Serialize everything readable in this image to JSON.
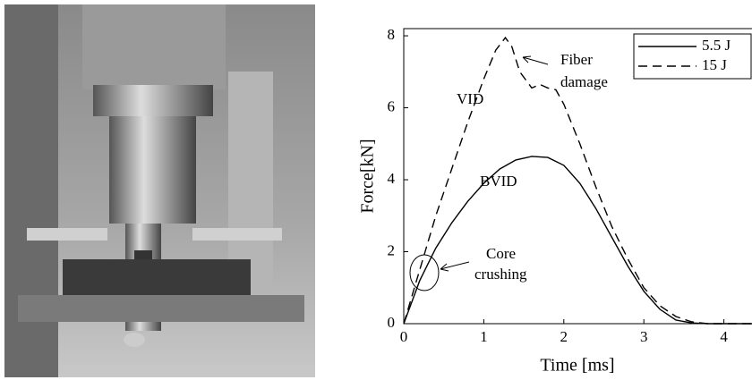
{
  "chart_data": {
    "type": "line",
    "x_label": "Time [ms]",
    "y_label": "Force[kN]",
    "xlim": [
      0,
      4.35
    ],
    "ylim": [
      0,
      8.2
    ],
    "xticks": [
      0,
      1,
      2,
      3,
      4
    ],
    "yticks": [
      0,
      2,
      4,
      6,
      8
    ],
    "legend": "top-right",
    "annotations": [
      "Fiber",
      "damage",
      "VID",
      "BVID",
      "Core",
      "crushing"
    ],
    "series": [
      {
        "name": "5.5 J",
        "color": "#000000",
        "dash": false,
        "x": [
          0,
          0.2,
          0.4,
          0.6,
          0.8,
          1.0,
          1.2,
          1.4,
          1.6,
          1.8,
          2.0,
          2.2,
          2.4,
          2.6,
          2.8,
          3.0,
          3.2,
          3.4,
          3.6,
          3.8,
          4.0,
          4.35
        ],
        "values": [
          0,
          1.2,
          2.1,
          2.8,
          3.4,
          3.9,
          4.3,
          4.55,
          4.65,
          4.62,
          4.4,
          3.9,
          3.2,
          2.4,
          1.6,
          0.9,
          0.4,
          0.1,
          0.02,
          0,
          0,
          0
        ]
      },
      {
        "name": "15 J",
        "color": "#000000",
        "dash": true,
        "x": [
          0,
          0.2,
          0.4,
          0.6,
          0.8,
          1.0,
          1.15,
          1.27,
          1.35,
          1.45,
          1.6,
          1.7,
          1.8,
          1.9,
          2.0,
          2.2,
          2.4,
          2.6,
          2.8,
          3.0,
          3.2,
          3.4,
          3.6,
          3.8,
          4.35
        ],
        "values": [
          0,
          1.5,
          3.0,
          4.3,
          5.6,
          6.8,
          7.6,
          7.95,
          7.7,
          7.0,
          6.55,
          6.65,
          6.55,
          6.5,
          6.1,
          5.0,
          3.8,
          2.7,
          1.8,
          1.0,
          0.5,
          0.2,
          0.05,
          0,
          0
        ]
      }
    ]
  }
}
